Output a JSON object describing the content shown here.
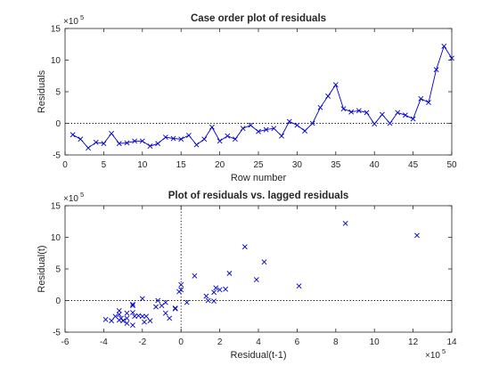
{
  "chart_data": [
    {
      "type": "line",
      "title": "Case order plot of residuals",
      "xlabel": "Row number",
      "ylabel": "Residuals",
      "xlim": [
        0,
        50
      ],
      "ylim": [
        -5,
        15
      ],
      "xticks": [
        "0",
        "5",
        "10",
        "15",
        "20",
        "25",
        "30",
        "35",
        "40",
        "45",
        "50"
      ],
      "yticks": [
        "-5",
        "0",
        "5",
        "10",
        "15"
      ],
      "y_multiplier": "×10",
      "y_multiplier_exp": "5",
      "reference_line": {
        "axis": "y",
        "value": 0,
        "style": "dotted"
      },
      "color": "#0000cc",
      "marker": "x",
      "series": [
        {
          "x": [
            1,
            2,
            3,
            4,
            5,
            6,
            7,
            8,
            9,
            10,
            11,
            12,
            13,
            14,
            15,
            16,
            17,
            18,
            19,
            20,
            21,
            22,
            23,
            24,
            25,
            26,
            27,
            28,
            29,
            30,
            31,
            32,
            33,
            34,
            35,
            36,
            37,
            38,
            39,
            40,
            41,
            42,
            43,
            44,
            45,
            46,
            47,
            48,
            49,
            50
          ],
          "values": [
            -1.8,
            -2.5,
            -3.9,
            -3.0,
            -3.2,
            -1.6,
            -3.2,
            -3.1,
            -2.8,
            -2.8,
            -3.6,
            -3.2,
            -2.2,
            -2.4,
            -2.5,
            -1.9,
            -3.4,
            -2.5,
            -0.6,
            -2.8,
            -2.0,
            -2.5,
            -0.8,
            -0.3,
            -1.3,
            -1.0,
            -0.8,
            -2.0,
            0.3,
            -0.3,
            -1.2,
            0.0,
            2.5,
            4.3,
            6.1,
            2.3,
            1.8,
            2.0,
            1.7,
            -0.1,
            1.4,
            0.0,
            1.7,
            1.3,
            0.7,
            3.9,
            3.3,
            8.5,
            12.2,
            10.3
          ]
        }
      ]
    },
    {
      "type": "scatter",
      "title": "Plot of residuals vs. lagged residuals",
      "xlabel": "Residual(t-1)",
      "ylabel": "Residual(t)",
      "xlim": [
        -6,
        14
      ],
      "ylim": [
        -5,
        15
      ],
      "xticks": [
        "-6",
        "-4",
        "-2",
        "0",
        "2",
        "4",
        "6",
        "8",
        "10",
        "12",
        "14"
      ],
      "yticks": [
        "-5",
        "0",
        "5",
        "10",
        "15"
      ],
      "x_multiplier": "×10",
      "x_multiplier_exp": "5",
      "y_multiplier": "×10",
      "y_multiplier_exp": "5",
      "reference_lines": [
        {
          "axis": "x",
          "value": 0,
          "style": "dotted"
        },
        {
          "axis": "y",
          "value": 0,
          "style": "dotted"
        }
      ],
      "color": "#0000cc",
      "marker": "x",
      "series": [
        {
          "x": [
            -1.8,
            -2.5,
            -3.9,
            -3.0,
            -3.2,
            -1.6,
            -3.2,
            -3.1,
            -2.8,
            -2.8,
            -3.6,
            -3.2,
            -2.2,
            -2.4,
            -2.5,
            -1.9,
            -3.4,
            -2.5,
            -0.6,
            -2.8,
            -2.0,
            -2.5,
            -0.8,
            -0.3,
            -1.3,
            -1.0,
            -0.8,
            -2.0,
            0.3,
            -0.3,
            -1.2,
            0.0,
            2.5,
            4.3,
            6.1,
            2.3,
            1.8,
            2.0,
            1.7,
            -0.1,
            1.4,
            0.0,
            1.7,
            1.3,
            0.7,
            3.9,
            3.3,
            8.5,
            12.2
          ],
          "values": [
            -2.5,
            -3.9,
            -3.0,
            -3.2,
            -1.6,
            -3.2,
            -3.1,
            -2.8,
            -2.8,
            -3.6,
            -3.2,
            -2.2,
            -2.4,
            -2.5,
            -1.9,
            -3.4,
            -2.5,
            -0.6,
            -2.8,
            -2.0,
            -2.5,
            -0.8,
            -0.3,
            -1.3,
            -1.0,
            -0.8,
            -2.0,
            0.3,
            -0.3,
            -1.2,
            0.0,
            2.5,
            4.3,
            6.1,
            2.3,
            1.8,
            2.0,
            1.7,
            -0.1,
            1.4,
            0.0,
            1.7,
            1.3,
            0.7,
            3.9,
            3.3,
            8.5,
            12.2,
            10.3
          ]
        }
      ]
    }
  ]
}
